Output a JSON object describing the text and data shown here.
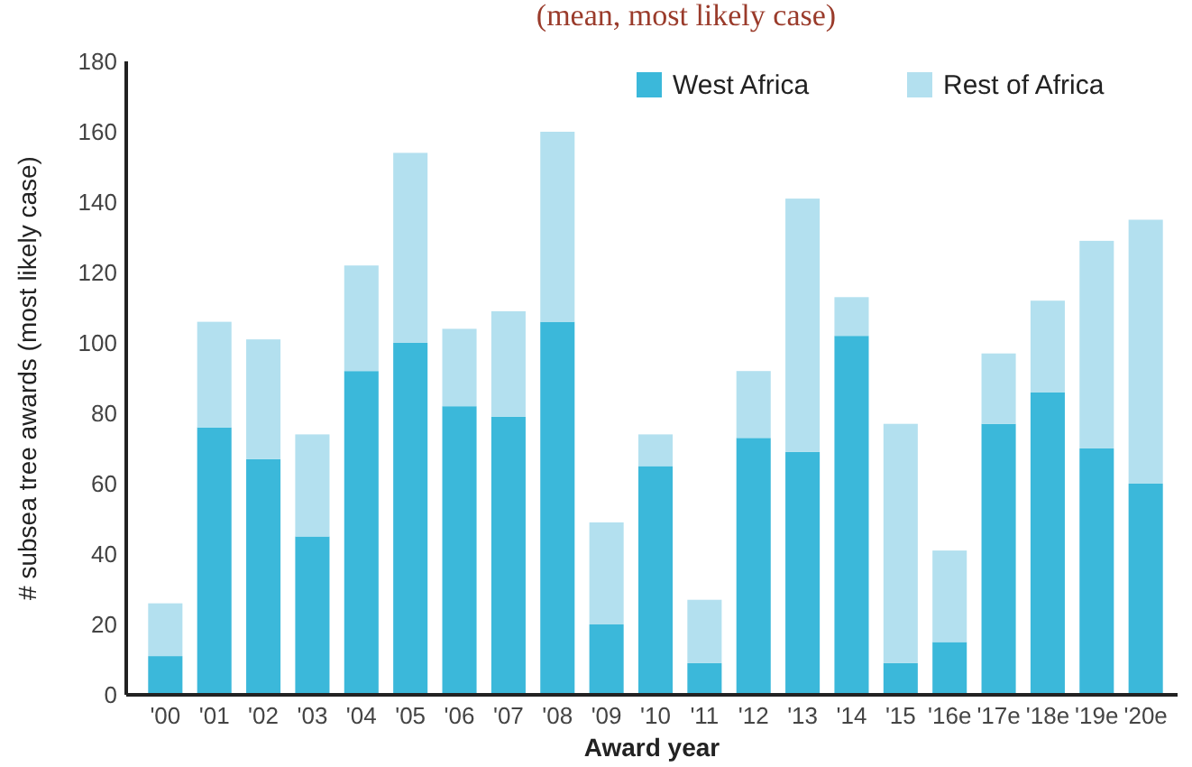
{
  "chart_data": {
    "type": "bar",
    "subtitle": "(mean, most likely case)",
    "xlabel": "Award year",
    "ylabel": "# subsea tree awards (most likely case)",
    "categories": [
      "'00",
      "'01",
      "'02",
      "'03",
      "'04",
      "'05",
      "'06",
      "'07",
      "'08",
      "'09",
      "'10",
      "'11",
      "'12",
      "'13",
      "'14",
      "'15",
      "'16e",
      "'17e",
      "'18e",
      "'19e",
      "'20e"
    ],
    "stacked": true,
    "series": [
      {
        "name": "West Africa",
        "color": "#3bb8da",
        "values": [
          11,
          76,
          67,
          45,
          92,
          100,
          82,
          79,
          106,
          20,
          65,
          9,
          73,
          69,
          102,
          9,
          15,
          77,
          86,
          70,
          60
        ]
      },
      {
        "name": "Rest of Africa",
        "color": "#b3e0ef",
        "values": [
          15,
          30,
          34,
          29,
          30,
          54,
          22,
          30,
          54,
          29,
          9,
          18,
          19,
          72,
          11,
          68,
          26,
          20,
          26,
          59,
          75
        ]
      }
    ],
    "ylim": [
      0,
      180
    ],
    "yticks": [
      0,
      20,
      40,
      60,
      80,
      100,
      120,
      140,
      160,
      180
    ],
    "legend": "top right"
  }
}
